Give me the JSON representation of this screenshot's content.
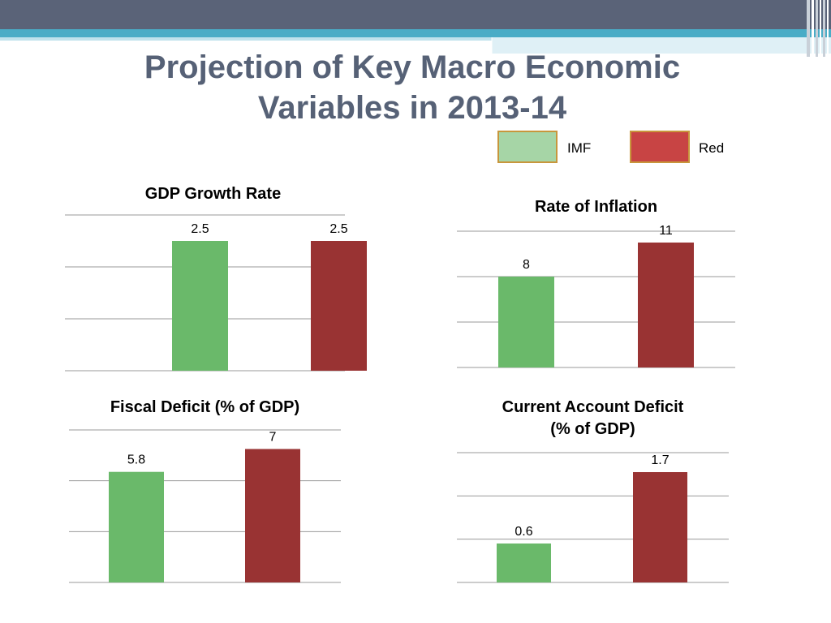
{
  "slide": {
    "title_line1": "Projection of Key Macro Economic",
    "title_line2": "Variables in 2013-14"
  },
  "legend": [
    {
      "label": "IMF",
      "color": "#a6d5a6"
    },
    {
      "label": "Red",
      "color": "#c84444"
    }
  ],
  "colors": {
    "imf_bar": "#6ab96a",
    "red_bar": "#993333",
    "gridline": "#999999",
    "banner_dark": "#5a6378",
    "banner_light": "#4aacc6"
  },
  "chart_data": [
    {
      "type": "bar",
      "title": "GDP Growth Rate",
      "categories": [
        "IMF",
        "Red"
      ],
      "values": [
        2.5,
        2.5
      ],
      "ylim": [
        0,
        3
      ],
      "grid": true
    },
    {
      "type": "bar",
      "title": "Rate of Inflation",
      "categories": [
        "IMF",
        "Red"
      ],
      "values": [
        8,
        11
      ],
      "ylim": [
        0,
        12
      ],
      "grid": true
    },
    {
      "type": "bar",
      "title": "Fiscal Deficit (% of GDP)",
      "categories": [
        "IMF",
        "Red"
      ],
      "values": [
        5.8,
        7
      ],
      "ylim": [
        0,
        8
      ],
      "grid": true
    },
    {
      "type": "bar",
      "title_line1": "Current Account Deficit",
      "title_line2": "(% of GDP)",
      "categories": [
        "IMF",
        "Red"
      ],
      "values": [
        0.6,
        1.7
      ],
      "ylim": [
        0,
        2
      ],
      "grid": true
    }
  ]
}
